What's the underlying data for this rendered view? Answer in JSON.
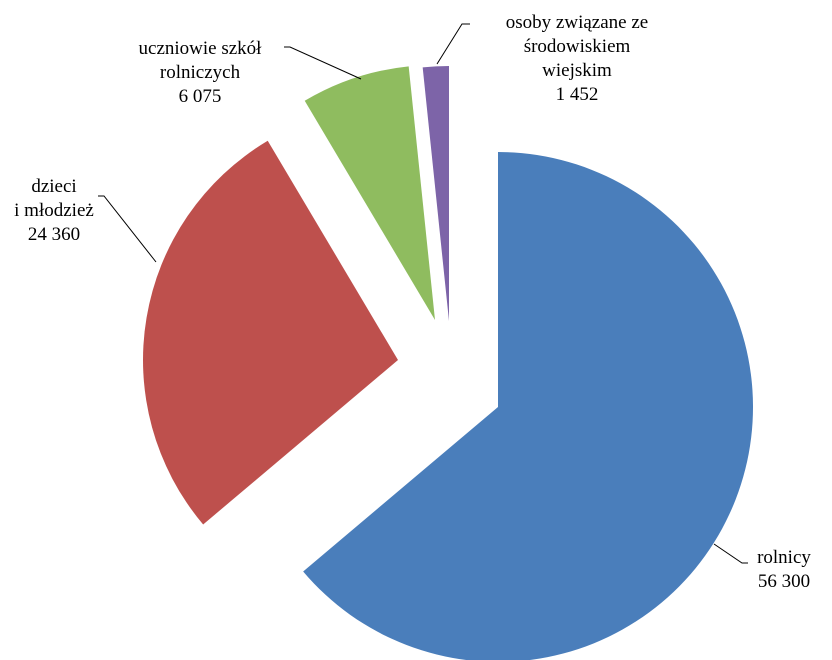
{
  "chart_data": {
    "type": "pie",
    "exploded": true,
    "slices": [
      {
        "label": [
          "rolnicy"
        ],
        "value": 56300,
        "value_text": "56 300",
        "color": "#4a7ebb"
      },
      {
        "label": [
          "dzieci",
          "i młodzież"
        ],
        "value": 24360,
        "value_text": "24 360",
        "color": "#be504d"
      },
      {
        "label": [
          "uczniowie szkół",
          "rolniczych"
        ],
        "value": 6075,
        "value_text": "6 075",
        "color": "#8fbc5f"
      },
      {
        "label": [
          "osoby związane ze",
          "środowiskiem",
          "wiejskim"
        ],
        "value": 1452,
        "value_text": "1 452",
        "color": "#7d64a8"
      }
    ]
  }
}
